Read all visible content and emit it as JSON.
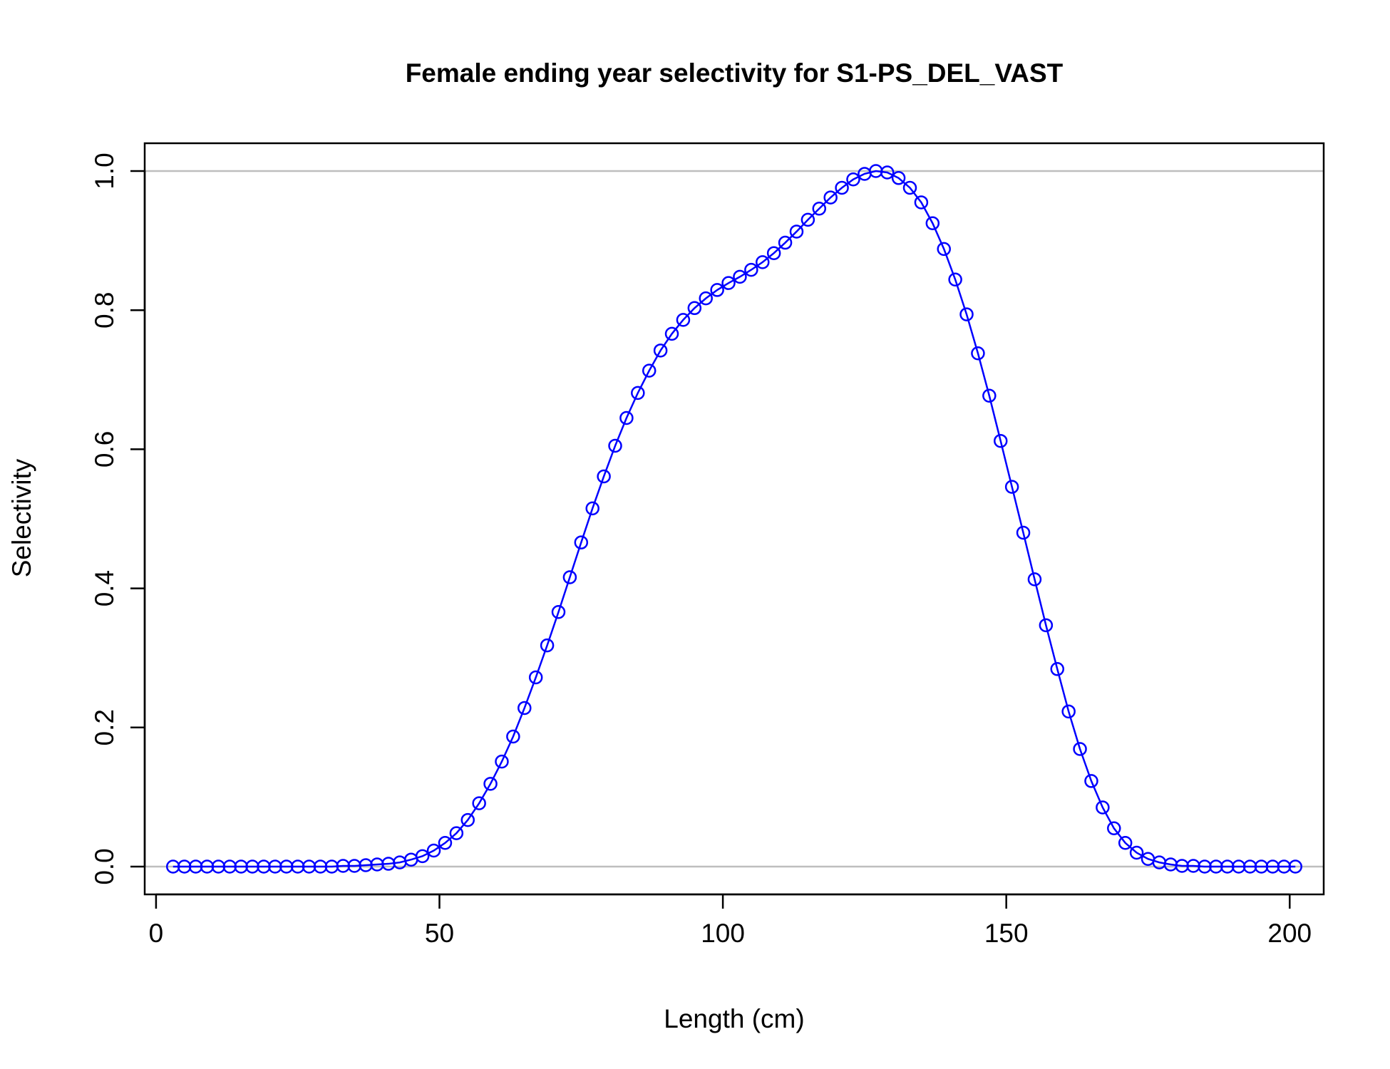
{
  "chart_data": {
    "type": "line",
    "title": "Female ending year selectivity for S1-PS_DEL_VAST",
    "xlabel": "Length (cm)",
    "ylabel": "Selectivity",
    "xlim": [
      -2,
      206
    ],
    "ylim": [
      -0.04,
      1.04
    ],
    "x_ticks": [
      0,
      50,
      100,
      150,
      200
    ],
    "x_tick_labels": [
      "0",
      "50",
      "100",
      "150",
      "200"
    ],
    "y_ticks": [
      0.0,
      0.2,
      0.4,
      0.6,
      0.8,
      1.0
    ],
    "y_tick_labels": [
      "0.0",
      "0.2",
      "0.4",
      "0.6",
      "0.8",
      "1.0"
    ],
    "reference_lines": [
      0,
      1
    ],
    "reference_line_color": "#bebebe",
    "series_color": "#0000ff",
    "grid": false,
    "marker": "open-circle",
    "series": [
      {
        "x": [
          3,
          5,
          7,
          9,
          11,
          13,
          15,
          17,
          19,
          21,
          23,
          25,
          27,
          29,
          31,
          33,
          35,
          37,
          39,
          41,
          43,
          45,
          47,
          49,
          51,
          53,
          55,
          57,
          59,
          61,
          63,
          65,
          67,
          69,
          71,
          73,
          75,
          77,
          79,
          81,
          83,
          85,
          87,
          89,
          91,
          93,
          95,
          97,
          99,
          101,
          103,
          105,
          107,
          109,
          111,
          113,
          115,
          117,
          119,
          121,
          123,
          125,
          127,
          129,
          131,
          133,
          135,
          137,
          139,
          141,
          143,
          145,
          147,
          149,
          151,
          153,
          155,
          157,
          159,
          161,
          163,
          165,
          167,
          169,
          171,
          173,
          175,
          177,
          179,
          181,
          183,
          185,
          187,
          189,
          191,
          193,
          195,
          197,
          199,
          201
        ],
        "values": [
          0,
          0,
          0,
          0,
          0,
          0,
          0,
          0,
          0,
          0,
          0,
          0,
          0,
          0,
          0,
          0.001,
          0.001,
          0.002,
          0.003,
          0.004,
          0.006,
          0.01,
          0.015,
          0.023,
          0.034,
          0.048,
          0.067,
          0.091,
          0.119,
          0.151,
          0.187,
          0.228,
          0.272,
          0.318,
          0.366,
          0.416,
          0.466,
          0.515,
          0.561,
          0.605,
          0.645,
          0.681,
          0.713,
          0.742,
          0.766,
          0.786,
          0.803,
          0.817,
          0.829,
          0.839,
          0.848,
          0.858,
          0.869,
          0.882,
          0.897,
          0.913,
          0.93,
          0.946,
          0.962,
          0.976,
          0.988,
          0.996,
          1.0,
          0.998,
          0.99,
          0.976,
          0.955,
          0.925,
          0.888,
          0.844,
          0.794,
          0.738,
          0.677,
          0.612,
          0.546,
          0.48,
          0.413,
          0.347,
          0.284,
          0.223,
          0.169,
          0.123,
          0.085,
          0.055,
          0.034,
          0.02,
          0.011,
          0.006,
          0.003,
          0.001,
          0.001,
          0,
          0,
          0,
          0,
          0,
          0,
          0,
          0,
          0
        ]
      }
    ]
  }
}
